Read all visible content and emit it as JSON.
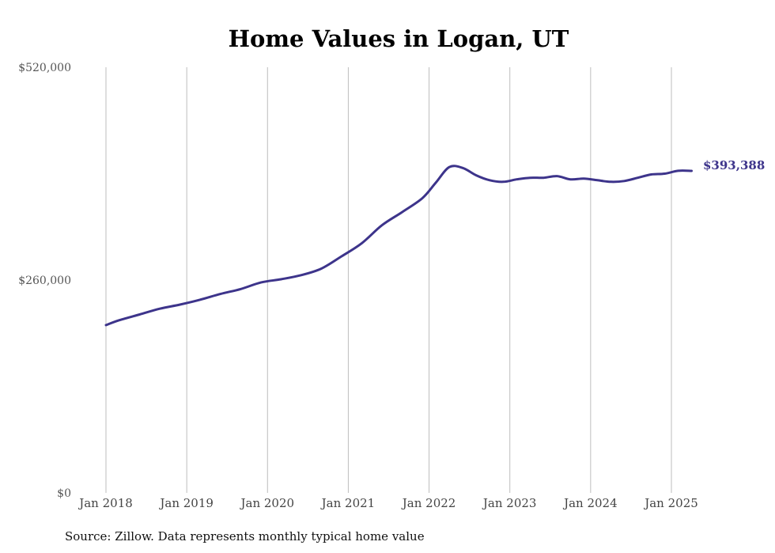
{
  "chart_data": {
    "type": "line",
    "title": "Home Values in Logan, UT",
    "xlabel": "",
    "ylabel": "",
    "source": "Source: Zillow. Data represents monthly typical home value",
    "ylim": [
      0,
      520000
    ],
    "yticks": [
      0,
      260000,
      520000
    ],
    "ytick_labels": [
      "$0",
      "$260,000",
      "$520,000"
    ],
    "xticks": [
      "2018-01",
      "2019-01",
      "2020-01",
      "2021-01",
      "2022-01",
      "2023-01",
      "2024-01",
      "2025-01"
    ],
    "xtick_labels": [
      "Jan 2018",
      "Jan 2019",
      "Jan 2020",
      "Jan 2021",
      "Jan 2022",
      "Jan 2023",
      "Jan 2024",
      "Jan 2025"
    ],
    "grid": "vertical",
    "line_color": "#3d348b",
    "end_label": "$393,388",
    "series": [
      {
        "x": [
          "2018-01",
          "2018-03",
          "2018-06",
          "2018-09",
          "2018-12",
          "2019-03",
          "2019-06",
          "2019-09",
          "2019-12",
          "2020-03",
          "2020-06",
          "2020-09",
          "2020-12",
          "2021-03",
          "2021-06",
          "2021-09",
          "2021-12",
          "2022-02",
          "2022-04",
          "2022-06",
          "2022-08",
          "2022-10",
          "2022-12",
          "2023-02",
          "2023-04",
          "2023-06",
          "2023-08",
          "2023-10",
          "2023-12",
          "2024-02",
          "2024-04",
          "2024-06",
          "2024-08",
          "2024-10",
          "2024-12",
          "2025-02",
          "2025-04"
        ],
        "values": [
          205000,
          211000,
          218000,
          225000,
          230000,
          236000,
          243000,
          249000,
          257000,
          261000,
          266000,
          274000,
          289000,
          305000,
          327000,
          343000,
          360000,
          379000,
          398000,
          397000,
          388000,
          382000,
          380000,
          383000,
          385000,
          385000,
          387000,
          383000,
          384000,
          382000,
          380000,
          381000,
          385000,
          389000,
          390000,
          393500,
          393388
        ]
      }
    ]
  }
}
